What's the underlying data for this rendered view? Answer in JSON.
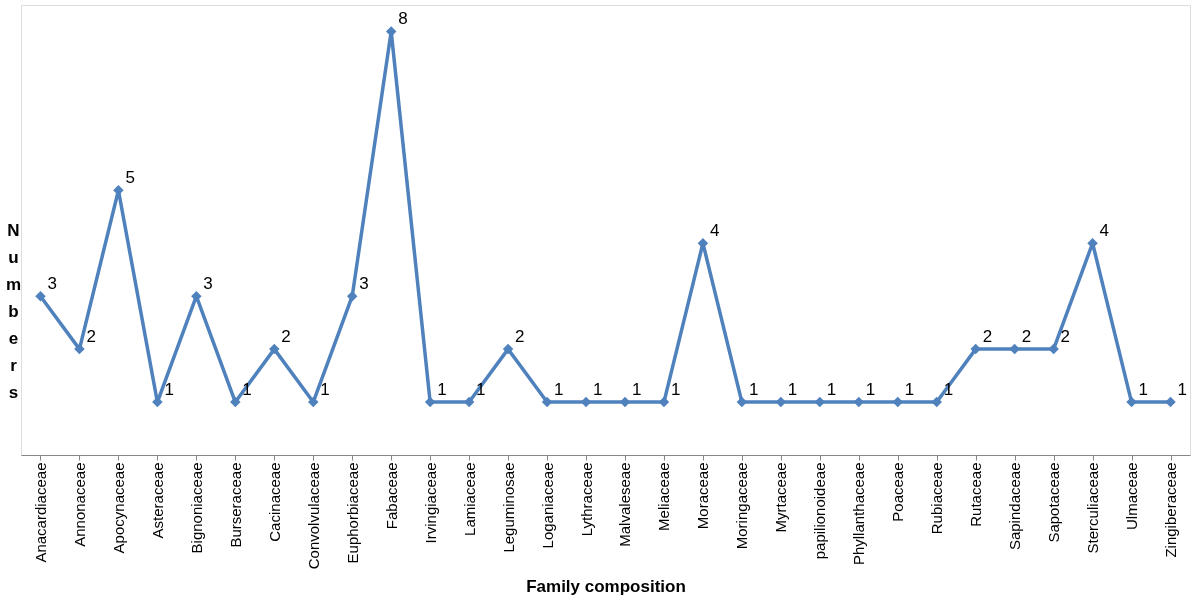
{
  "chart_data": {
    "type": "line",
    "xlabel": "Family composition",
    "ylabel": "Numbers",
    "categories": [
      "Anacardiaceae",
      "Annonaceae",
      "Apocynaceae",
      "Asteraceae",
      "Bignoniaceae",
      "Burseraceae",
      "Cacinaceae",
      "Convolvulaceae",
      "Euphorbiaceae",
      "Fabaceae",
      "Irvingiaceae",
      "Lamiaceae",
      "Leguminosae",
      "Loganiaceae",
      "Lythraceae",
      "Malvaleseae",
      "Meliaceae",
      "Moraceae",
      "Moringaceae",
      "Myrtaceae",
      "papilionoideae",
      "Phyllanthaceae",
      "Poaceae",
      "Rubiaceae",
      "Rutaceae",
      "Sapindaceae",
      "Sapotaceae",
      "Sterculiaceae",
      "Ulmaceae",
      "Zingiberaceae"
    ],
    "series": [
      {
        "color": "#4f81bd",
        "values": [
          3,
          2,
          5,
          1,
          3,
          1,
          2,
          1,
          3,
          8,
          1,
          1,
          2,
          1,
          1,
          1,
          1,
          4,
          1,
          1,
          1,
          1,
          1,
          1,
          2,
          2,
          2,
          4,
          1,
          1
        ]
      }
    ],
    "ylim": [
      0,
      8.5
    ],
    "tick_labels": "x",
    "data_labels": true,
    "marker": "diamond",
    "line_style": "solid",
    "grid": false
  }
}
